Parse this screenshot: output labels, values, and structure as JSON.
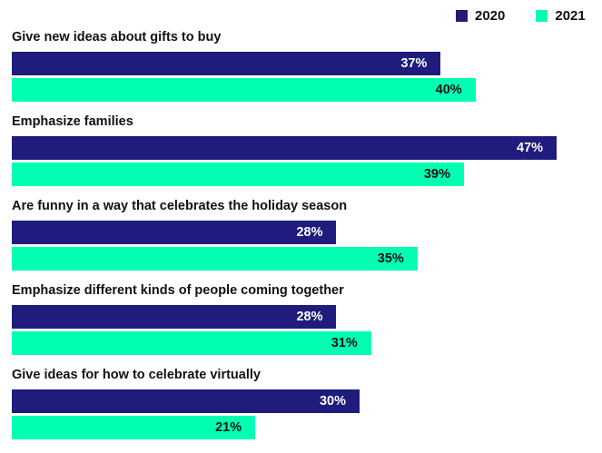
{
  "chart_data": {
    "type": "bar",
    "orientation": "horizontal",
    "categories": [
      "Give new ideas about gifts to buy",
      "Emphasize families",
      "Are funny in a way that celebrates the holiday season",
      "Emphasize different kinds of people coming together",
      "Give ideas for how to celebrate virtually"
    ],
    "series": [
      {
        "name": "2020",
        "color": "#1f1c7d",
        "label_color": "#ffffff",
        "values": [
          37,
          47,
          28,
          28,
          30
        ]
      },
      {
        "name": "2021",
        "color": "#00ffb3",
        "label_color": "#111111",
        "values": [
          40,
          39,
          35,
          31,
          21
        ]
      }
    ],
    "value_suffix": "%",
    "legend": "top-right",
    "grid": false
  }
}
